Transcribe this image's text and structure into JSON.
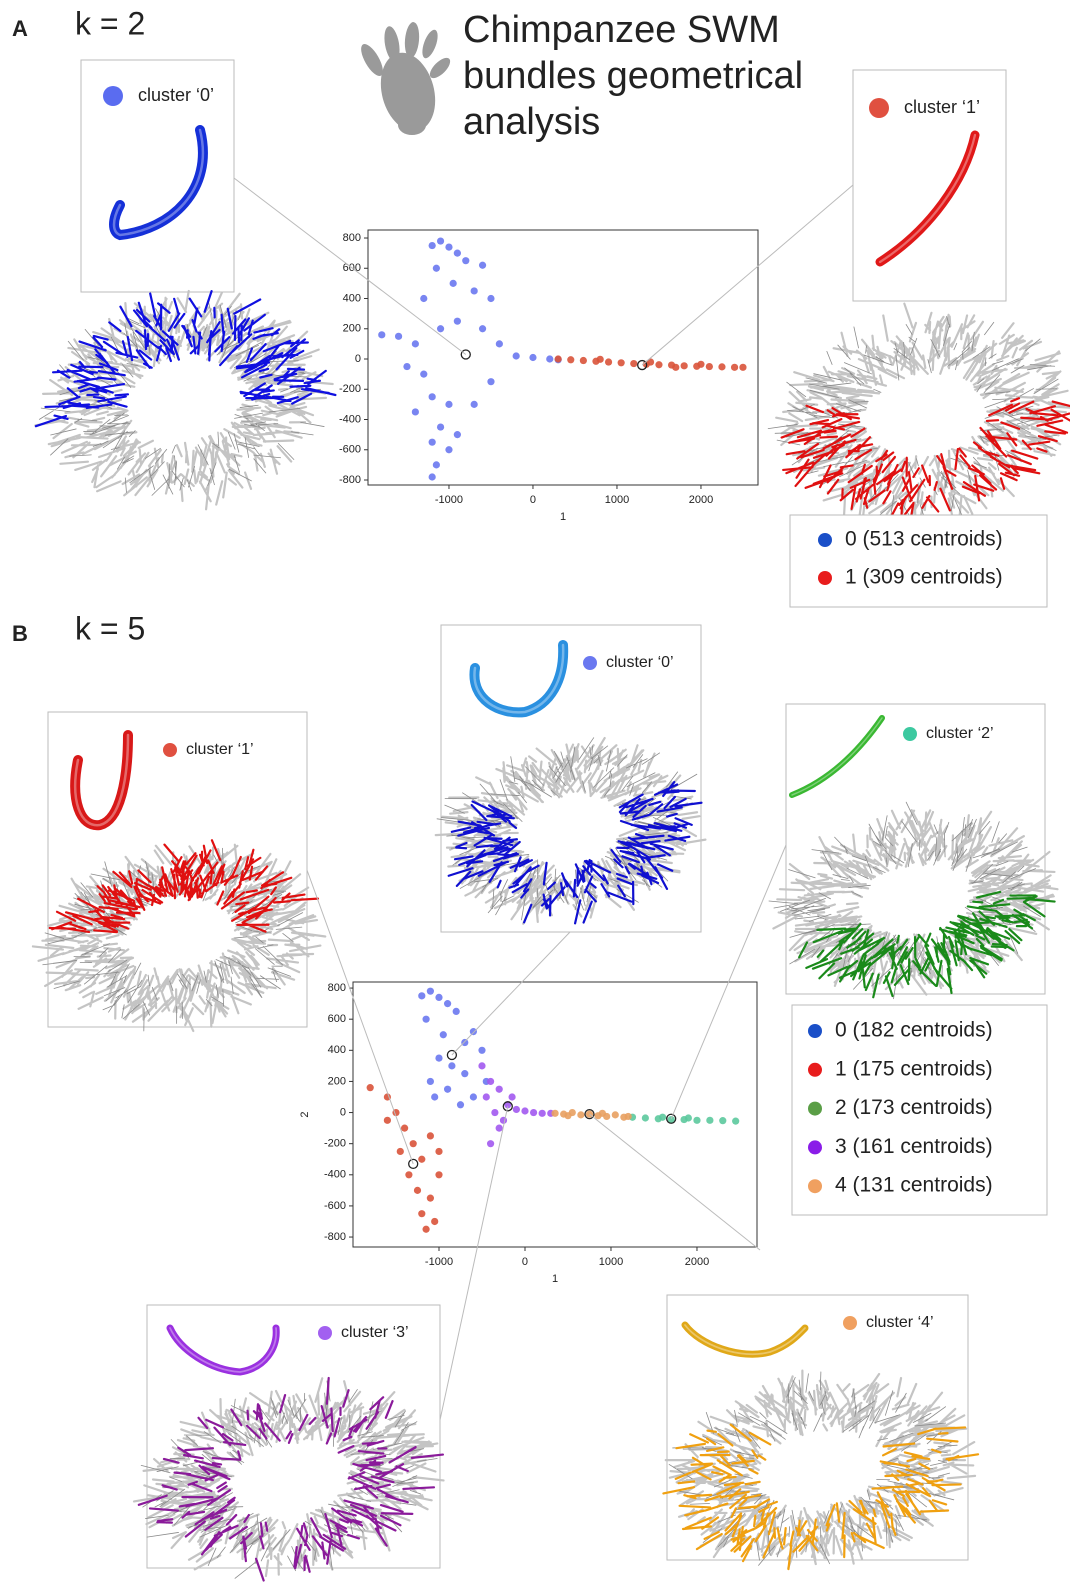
{
  "title_lines": [
    "Chimpanzee SWM",
    "bundles geometrical",
    "analysis"
  ],
  "panels": [
    {
      "label": "A",
      "k": "k = 2",
      "insets": [
        {
          "label": "cluster ‘0’",
          "color": "#5a6cf0"
        },
        {
          "label": "cluster ‘1’",
          "color": "#e05040"
        }
      ]
    },
    {
      "label": "B",
      "k": "k = 5",
      "insets": [
        {
          "label": "cluster ‘0’",
          "color": "#6a78f0"
        },
        {
          "label": "cluster ‘1’",
          "color": "#e05040"
        },
        {
          "label": "cluster ‘2’",
          "color": "#3cc9a0"
        },
        {
          "label": "cluster ‘3’",
          "color": "#a260f0"
        },
        {
          "label": "cluster ‘4’",
          "color": "#f0a060"
        }
      ]
    }
  ],
  "chart_data": [
    {
      "type": "scatter",
      "xlabel": "1",
      "xlim": [
        -1964,
        2679
      ],
      "ylim": [
        -833,
        853
      ],
      "xticks": [
        -1000,
        0,
        1000,
        2000
      ],
      "yticks": [
        -800,
        -600,
        -400,
        -200,
        0,
        200,
        400,
        600,
        800
      ],
      "series": [
        {
          "name": "0 (513 centroids)",
          "color": "#6a78f0",
          "legend_color": "#1a4fc8",
          "x": [
            -1200,
            -1100,
            -1000,
            -900,
            -800,
            -600,
            -1150,
            -950,
            -700,
            -500,
            -1300,
            -1600,
            -1800,
            -1400,
            -1100,
            -900,
            -600,
            -400,
            -200,
            0,
            200,
            300,
            -1300,
            -1200,
            -1000,
            -1400,
            -1100,
            -1200,
            -1000,
            -1150,
            -1200,
            -900,
            -700,
            -500,
            -1500
          ],
          "values": [
            750,
            780,
            740,
            700,
            650,
            620,
            600,
            500,
            450,
            400,
            400,
            150,
            160,
            100,
            200,
            250,
            200,
            100,
            20,
            10,
            0,
            -5,
            -100,
            -250,
            -300,
            -350,
            -450,
            -550,
            -600,
            -700,
            -780,
            -500,
            -300,
            -150,
            -50
          ]
        },
        {
          "name": "1 (309 centroids)",
          "color": "#d9533a",
          "legend_color": "#e81c1c",
          "x": [
            300,
            450,
            600,
            750,
            900,
            1050,
            1200,
            1350,
            1500,
            1650,
            1800,
            1950,
            2100,
            2250,
            2400,
            2500,
            1400,
            1700,
            2000,
            800
          ],
          "values": [
            0,
            -5,
            -10,
            -15,
            -20,
            -25,
            -30,
            -35,
            -38,
            -40,
            -45,
            -48,
            -50,
            -52,
            -55,
            -55,
            -20,
            -55,
            -35,
            -2
          ]
        }
      ],
      "highlight_points": {
        "x": [
          -800,
          1300
        ],
        "y": [
          30,
          -40
        ]
      }
    },
    {
      "type": "scatter",
      "xlabel": "1",
      "ylabel": "2",
      "xlim": [
        -2000,
        2698
      ],
      "ylim": [
        -864,
        839
      ],
      "xticks": [
        -1000,
        0,
        1000,
        2000
      ],
      "yticks": [
        -800,
        -600,
        -400,
        -200,
        0,
        200,
        400,
        600,
        800
      ],
      "series": [
        {
          "name": "0 (182 centroids)",
          "color": "#6a78f0",
          "legend_color": "#1a4fc8",
          "x": [
            -1200,
            -1100,
            -1000,
            -900,
            -800,
            -1150,
            -950,
            -700,
            -600,
            -500,
            -1000,
            -850,
            -700,
            -1100,
            -900,
            -600,
            -450,
            -750,
            -1050
          ],
          "values": [
            750,
            780,
            740,
            700,
            650,
            600,
            500,
            450,
            520,
            400,
            350,
            300,
            250,
            200,
            150,
            100,
            200,
            50,
            100
          ]
        },
        {
          "name": "1 (175 centroids)",
          "color": "#d9533a",
          "legend_color": "#e81c1c",
          "x": [
            -1800,
            -1600,
            -1500,
            -1400,
            -1300,
            -1200,
            -1350,
            -1250,
            -1100,
            -1200,
            -1150,
            -1050,
            -1000,
            -1450,
            -1600,
            -1100,
            -1000
          ],
          "values": [
            160,
            100,
            0,
            -100,
            -200,
            -300,
            -400,
            -500,
            -550,
            -650,
            -750,
            -700,
            -400,
            -250,
            -50,
            -150,
            -250
          ]
        },
        {
          "name": "2 (173 centroids)",
          "color": "#5cc99d",
          "legend_color": "#5a9e46",
          "x": [
            1250,
            1400,
            1550,
            1700,
            1850,
            2000,
            2150,
            2300,
            2450,
            1600,
            1900
          ],
          "values": [
            -30,
            -35,
            -40,
            -45,
            -45,
            -50,
            -50,
            -52,
            -55,
            -30,
            -35
          ]
        },
        {
          "name": "3 (161 centroids)",
          "color": "#a259f0",
          "legend_color": "#8a1ce8",
          "x": [
            -500,
            -400,
            -450,
            -300,
            -350,
            -250,
            -200,
            -300,
            -400,
            -100,
            0,
            100,
            200,
            300,
            -150
          ],
          "values": [
            300,
            200,
            100,
            150,
            0,
            -50,
            50,
            -100,
            -200,
            20,
            10,
            0,
            -5,
            -5,
            100
          ]
        },
        {
          "name": "4 (131 centroids)",
          "color": "#e8a060",
          "legend_color": "#f0a060",
          "x": [
            350,
            450,
            550,
            650,
            750,
            850,
            950,
            1050,
            1150,
            1200,
            500,
            900
          ],
          "values": [
            -5,
            -10,
            0,
            -15,
            -10,
            -20,
            -25,
            -15,
            -30,
            -25,
            -20,
            -5
          ]
        }
      ],
      "highlight_points": {
        "x": [
          -850,
          -1300,
          1700,
          -200,
          750
        ],
        "y": [
          370,
          -330,
          -40,
          40,
          -10
        ]
      }
    }
  ]
}
